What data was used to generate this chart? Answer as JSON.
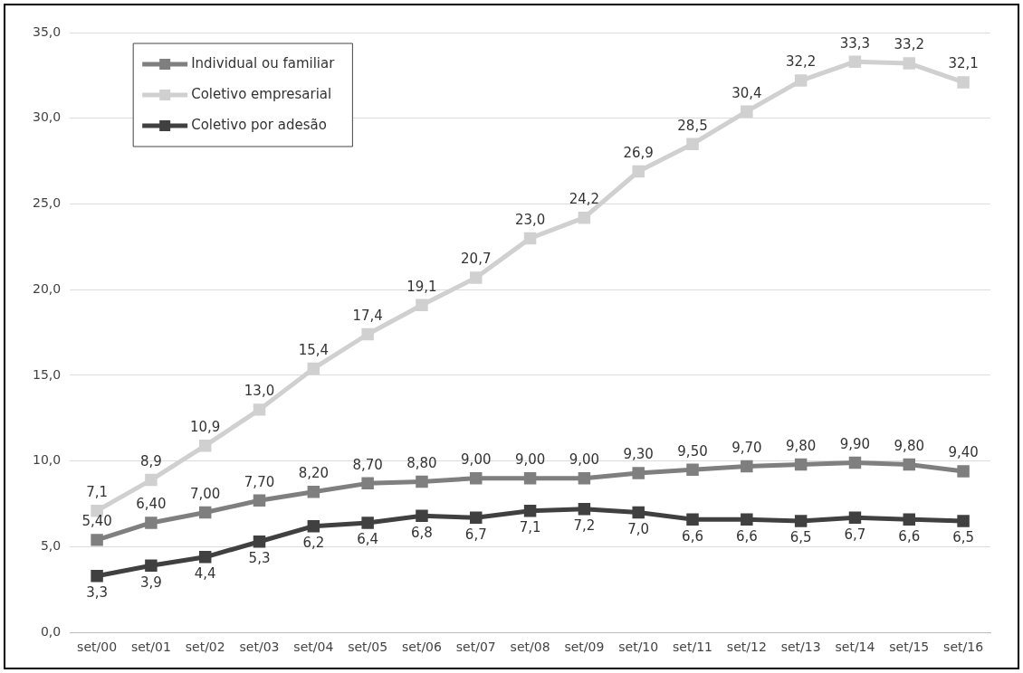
{
  "chart_data": {
    "type": "line",
    "categories": [
      "set/00",
      "set/01",
      "set/02",
      "set/03",
      "set/04",
      "set/05",
      "set/06",
      "set/07",
      "set/08",
      "set/09",
      "set/10",
      "set/11",
      "set/12",
      "set/13",
      "set/14",
      "set/15",
      "set/16"
    ],
    "series": [
      {
        "name": "Individual ou familiar",
        "color": "#7f7f7f",
        "values": [
          5.4,
          6.4,
          7.0,
          7.7,
          8.2,
          8.7,
          8.8,
          9.0,
          9.0,
          9.0,
          9.3,
          9.5,
          9.7,
          9.8,
          9.9,
          9.8,
          9.4
        ],
        "value_labels": [
          "5,40",
          "6,40",
          "7,00",
          "7,70",
          "8,20",
          "8,70",
          "8,80",
          "9,00",
          "9,00",
          "9,00",
          "9,30",
          "9,50",
          "9,70",
          "9,80",
          "9,90",
          "9,80",
          "9,40"
        ]
      },
      {
        "name": "Coletivo empresarial",
        "color": "#d0d0d0",
        "values": [
          7.1,
          8.9,
          10.9,
          13.0,
          15.4,
          17.4,
          19.1,
          20.7,
          23.0,
          24.2,
          26.9,
          28.5,
          30.4,
          32.2,
          33.3,
          33.2,
          32.1
        ],
        "value_labels": [
          "7,1",
          "8,9",
          "10,9",
          "13,0",
          "15,4",
          "17,4",
          "19,1",
          "20,7",
          "23,0",
          "24,2",
          "26,9",
          "28,5",
          "30,4",
          "32,2",
          "33,3",
          "33,2",
          "32,1"
        ]
      },
      {
        "name": "Coletivo por adesão",
        "color": "#404040",
        "values": [
          3.3,
          3.9,
          4.4,
          5.3,
          6.2,
          6.4,
          6.8,
          6.7,
          7.1,
          7.2,
          7.0,
          6.6,
          6.6,
          6.5,
          6.7,
          6.6,
          6.5
        ],
        "value_labels": [
          "3,3",
          "3,9",
          "4,4",
          "5,3",
          "6,2",
          "6,4",
          "6,8",
          "6,7",
          "7,1",
          "7,2",
          "7,0",
          "6,6",
          "6,6",
          "6,5",
          "6,7",
          "6,6",
          "6,5"
        ]
      }
    ],
    "ylim": [
      0,
      35
    ],
    "yticks": [
      {
        "value": 0,
        "label": "0,0"
      },
      {
        "value": 5,
        "label": "5,0"
      },
      {
        "value": 10,
        "label": "10,0"
      },
      {
        "value": 15,
        "label": "15,0"
      },
      {
        "value": 20,
        "label": "20,0"
      },
      {
        "value": 25,
        "label": "25,0"
      },
      {
        "value": 30,
        "label": "30,0"
      },
      {
        "value": 35,
        "label": "35,0"
      }
    ],
    "grid": "y",
    "legend": "top left",
    "marker": "square",
    "line_style": "solid"
  }
}
